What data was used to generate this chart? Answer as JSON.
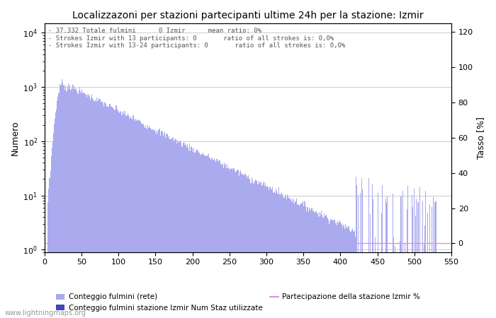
{
  "title": "Localizzazoni per stazioni partecipanti ultime 24h per la stazione: Izmir",
  "ylabel_left": "Numero",
  "ylabel_right": "Tasso [%]",
  "annotation_lines": [
    "37.332 Totale fulmini      0 Izmir      mean ratio: 0%",
    "Strokes Izmir with 13 participants: 0       ratio of all strokes is: 0,0%",
    "Strokes Izmir with 13-24 participants: 0       ratio of all strokes is: 0,0%"
  ],
  "xlim": [
    0,
    550
  ],
  "ylim_right": [
    -5,
    125
  ],
  "right_yticks": [
    0,
    20,
    40,
    60,
    80,
    100,
    120
  ],
  "bar_color_light": "#aaaaee",
  "bar_color_dark": "#4444bb",
  "line_color": "#ee88ee",
  "background_color": "#ffffff",
  "grid_color": "#cccccc",
  "watermark": "www.lightningmaps.org",
  "legend1_label": "Conteggio fulmini (rete)",
  "legend2_label": "Conteggio fulmini stazione Izmir",
  "legend3_label": "Num Staz utilizzate",
  "legend4_label": "Partecipazione della stazione Izmir %"
}
